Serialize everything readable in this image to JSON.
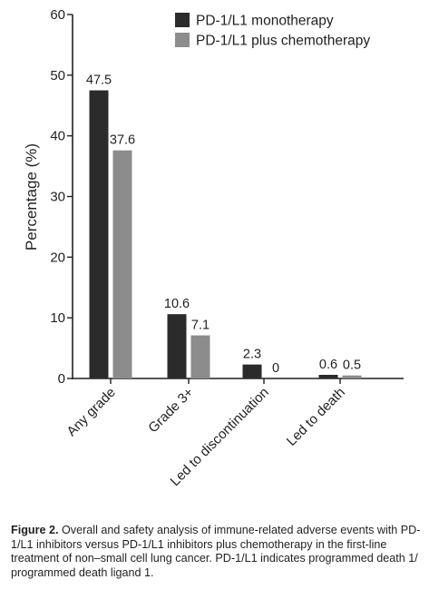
{
  "chart_data": {
    "type": "bar",
    "ylabel": "Percentage (%)",
    "xlabel": "",
    "ylim": [
      0,
      60
    ],
    "yticks": [
      0,
      10,
      20,
      30,
      40,
      50,
      60
    ],
    "categories": [
      "Any grade",
      "Grade 3+",
      "Led to discontinuation",
      "Led to death"
    ],
    "series": [
      {
        "name": "PD-1/L1 monotherapy",
        "color": "#2b2b2b",
        "values": [
          47.5,
          10.6,
          2.3,
          0.6
        ],
        "labels": [
          "47.5",
          "10.6",
          "2.3",
          "0.6"
        ]
      },
      {
        "name": "PD-1/L1 plus chemotherapy",
        "color": "#8c8c8c",
        "values": [
          37.6,
          7.1,
          0,
          0.5
        ],
        "labels": [
          "37.6",
          "7.1",
          "0",
          "0.5"
        ]
      }
    ],
    "legend_position": "top-right",
    "grid": false
  },
  "caption": {
    "label": "Figure 2.",
    "text": " Overall and safety analysis of immune-related adverse events with PD-1/L1 inhibitors versus PD-1/L1 inhibitors plus chemotherapy in the first-line treatment of non–small cell lung cancer. PD-1/L1 indicates programmed death 1/ programmed death ligand 1."
  }
}
